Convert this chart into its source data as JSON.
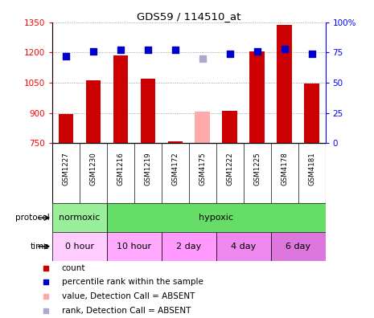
{
  "title": "GDS59 / 114510_at",
  "samples": [
    "GSM1227",
    "GSM1230",
    "GSM1216",
    "GSM1219",
    "GSM4172",
    "GSM4175",
    "GSM1222",
    "GSM1225",
    "GSM4178",
    "GSM4181"
  ],
  "bar_values": [
    895,
    1060,
    1185,
    1070,
    757,
    null,
    910,
    1205,
    1335,
    1045
  ],
  "bar_absent": [
    null,
    null,
    null,
    null,
    null,
    908,
    null,
    null,
    null,
    null
  ],
  "rank_values": [
    72,
    76,
    77,
    77,
    77,
    null,
    74,
    76,
    78,
    74
  ],
  "rank_absent": [
    null,
    null,
    null,
    null,
    null,
    70,
    null,
    null,
    null,
    null
  ],
  "ylim_left": [
    750,
    1350
  ],
  "ylim_right": [
    0,
    100
  ],
  "yticks_left": [
    750,
    900,
    1050,
    1200,
    1350
  ],
  "yticks_right": [
    0,
    25,
    50,
    75,
    100
  ],
  "bar_color": "#cc0000",
  "bar_absent_color": "#ffaaaa",
  "rank_color": "#0000cc",
  "rank_absent_color": "#aaaacc",
  "protocol_groups": [
    {
      "label": "normoxic",
      "start": 0,
      "end": 2,
      "color": "#99ee99"
    },
    {
      "label": "hypoxic",
      "start": 2,
      "end": 10,
      "color": "#66dd66"
    }
  ],
  "time_groups": [
    {
      "label": "0 hour",
      "start": 0,
      "end": 2,
      "color": "#ffccff"
    },
    {
      "label": "10 hour",
      "start": 2,
      "end": 4,
      "color": "#ffaaff"
    },
    {
      "label": "2 day",
      "start": 4,
      "end": 6,
      "color": "#ff99ff"
    },
    {
      "label": "4 day",
      "start": 6,
      "end": 8,
      "color": "#ee88ee"
    },
    {
      "label": "6 day",
      "start": 8,
      "end": 10,
      "color": "#dd77dd"
    }
  ],
  "bg_color": "#ffffff",
  "grid_color": "#888888",
  "bar_width": 0.55,
  "sample_box_color": "#dddddd"
}
